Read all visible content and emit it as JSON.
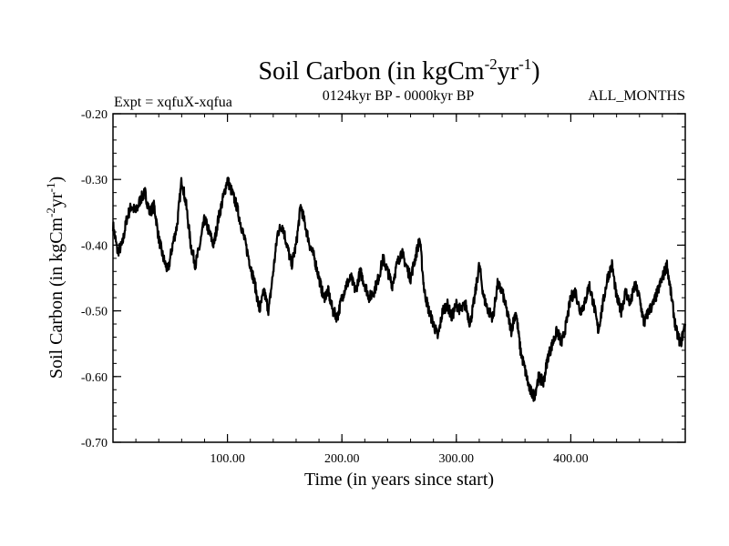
{
  "chart_data": {
    "type": "line",
    "title": "Soil Carbon (in kgCm",
    "title_sup1": "-2",
    "title_mid": "yr",
    "title_sup2": "-1",
    "title_end": ")",
    "subtitle_left": "Expt = xqfuX-xqfua",
    "subtitle_center": "0124kyr BP - 0000kyr BP",
    "subtitle_right": "ALL_MONTHS",
    "xlabel": "Time (in years since start)",
    "ylabel": "Soil Carbon (in kgCm",
    "ylabel_sup1": "-2",
    "ylabel_mid": "yr",
    "ylabel_sup2": "-1",
    "ylabel_end": ")",
    "xlim": [
      0,
      500
    ],
    "ylim": [
      -0.7,
      -0.2
    ],
    "xticks": [
      {
        "value": 100,
        "label": "100.00"
      },
      {
        "value": 200,
        "label": "200.00"
      },
      {
        "value": 300,
        "label": "300.00"
      },
      {
        "value": 400,
        "label": "400.00"
      }
    ],
    "yticks": [
      {
        "value": -0.2,
        "label": "-0.20"
      },
      {
        "value": -0.3,
        "label": "-0.30"
      },
      {
        "value": -0.4,
        "label": "-0.40"
      },
      {
        "value": -0.5,
        "label": "-0.50"
      },
      {
        "value": -0.6,
        "label": "-0.60"
      },
      {
        "value": -0.7,
        "label": "-0.70"
      }
    ],
    "series": [
      {
        "name": "Soil Carbon",
        "color": "#000000",
        "x": [
          0,
          4,
          8,
          12,
          16,
          20,
          24,
          28,
          32,
          36,
          40,
          44,
          48,
          52,
          56,
          60,
          64,
          68,
          72,
          76,
          80,
          84,
          88,
          92,
          96,
          100,
          104,
          108,
          112,
          116,
          120,
          124,
          128,
          132,
          136,
          140,
          144,
          148,
          152,
          156,
          160,
          164,
          168,
          172,
          176,
          180,
          184,
          188,
          192,
          196,
          200,
          204,
          208,
          212,
          216,
          220,
          224,
          228,
          232,
          236,
          240,
          244,
          248,
          252,
          256,
          260,
          264,
          268,
          272,
          276,
          280,
          284,
          288,
          292,
          296,
          300,
          304,
          308,
          312,
          316,
          320,
          324,
          328,
          332,
          336,
          340,
          344,
          348,
          352,
          356,
          360,
          364,
          368,
          372,
          376,
          380,
          384,
          388,
          392,
          396,
          400,
          404,
          408,
          412,
          416,
          420,
          424,
          428,
          432,
          436,
          440,
          444,
          448,
          452,
          456,
          460,
          464,
          468,
          472,
          476,
          480,
          484,
          488,
          492,
          496,
          500
        ],
        "y": [
          -0.37,
          -0.41,
          -0.4,
          -0.36,
          -0.34,
          -0.35,
          -0.33,
          -0.32,
          -0.35,
          -0.34,
          -0.39,
          -0.42,
          -0.44,
          -0.4,
          -0.37,
          -0.3,
          -0.34,
          -0.4,
          -0.43,
          -0.4,
          -0.36,
          -0.38,
          -0.4,
          -0.36,
          -0.33,
          -0.3,
          -0.32,
          -0.34,
          -0.37,
          -0.4,
          -0.43,
          -0.46,
          -0.5,
          -0.47,
          -0.5,
          -0.44,
          -0.38,
          -0.37,
          -0.4,
          -0.43,
          -0.4,
          -0.34,
          -0.37,
          -0.4,
          -0.42,
          -0.45,
          -0.48,
          -0.47,
          -0.5,
          -0.51,
          -0.48,
          -0.46,
          -0.45,
          -0.47,
          -0.44,
          -0.46,
          -0.48,
          -0.47,
          -0.45,
          -0.42,
          -0.44,
          -0.46,
          -0.43,
          -0.41,
          -0.43,
          -0.45,
          -0.42,
          -0.39,
          -0.47,
          -0.5,
          -0.52,
          -0.54,
          -0.5,
          -0.49,
          -0.51,
          -0.49,
          -0.5,
          -0.49,
          -0.52,
          -0.48,
          -0.43,
          -0.48,
          -0.5,
          -0.51,
          -0.46,
          -0.47,
          -0.5,
          -0.53,
          -0.5,
          -0.56,
          -0.59,
          -0.62,
          -0.63,
          -0.6,
          -0.61,
          -0.57,
          -0.55,
          -0.53,
          -0.55,
          -0.52,
          -0.48,
          -0.47,
          -0.5,
          -0.49,
          -0.46,
          -0.49,
          -0.53,
          -0.49,
          -0.45,
          -0.43,
          -0.48,
          -0.5,
          -0.47,
          -0.49,
          -0.46,
          -0.48,
          -0.52,
          -0.5,
          -0.49,
          -0.47,
          -0.45,
          -0.43,
          -0.48,
          -0.53,
          -0.55,
          -0.52
        ]
      }
    ]
  }
}
